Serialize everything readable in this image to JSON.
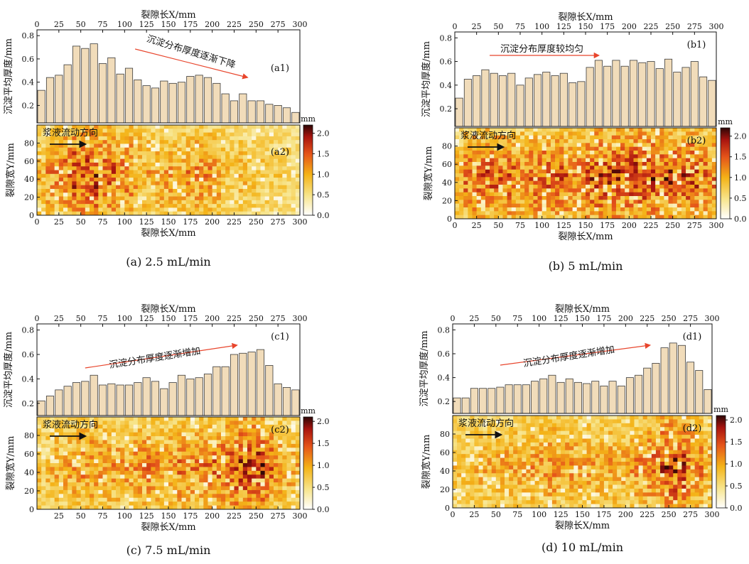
{
  "figure": {
    "x_axis_label": "裂隙长X/mm",
    "bar_ylabel": "沉淀平均厚度/mm",
    "heat_ylabel": "裂隙宽Y/mm",
    "flow_label": "浆液流动方向",
    "colorbar_unit": "mm"
  },
  "chart_data": [
    {
      "type": "bar",
      "panel": "(a1)",
      "caption": "(a) 2.5 mL/min",
      "trend_annotation": "沉淀分布厚度逐渐下降",
      "xlabel": "裂隙长X/mm",
      "ylabel": "沉淀平均厚度/mm",
      "xlim": [
        0,
        300
      ],
      "ylim": [
        0.05,
        0.85
      ],
      "xticks": [
        0,
        25,
        50,
        75,
        100,
        125,
        150,
        175,
        200,
        225,
        250,
        275,
        300
      ],
      "yticks": [
        0.2,
        0.4,
        0.6,
        0.8
      ],
      "bin_width": 10,
      "x": [
        5,
        15,
        25,
        35,
        45,
        55,
        65,
        75,
        85,
        95,
        105,
        115,
        125,
        135,
        145,
        155,
        165,
        175,
        185,
        195,
        205,
        215,
        225,
        235,
        245,
        255,
        265,
        275,
        285,
        295
      ],
      "values": [
        0.33,
        0.44,
        0.46,
        0.55,
        0.71,
        0.69,
        0.73,
        0.56,
        0.61,
        0.47,
        0.52,
        0.42,
        0.37,
        0.35,
        0.41,
        0.39,
        0.4,
        0.45,
        0.46,
        0.44,
        0.39,
        0.3,
        0.24,
        0.3,
        0.24,
        0.24,
        0.21,
        0.2,
        0.18,
        0.14
      ]
    },
    {
      "type": "heatmap",
      "panel": "(a2)",
      "xlabel": "裂隙长X/mm",
      "ylabel": "裂隙宽Y/mm",
      "xlim": [
        0,
        300
      ],
      "ylim": [
        0,
        100
      ],
      "xticks": [
        0,
        25,
        50,
        75,
        100,
        125,
        150,
        175,
        200,
        225,
        250,
        275,
        300
      ],
      "yticks": [
        0,
        20,
        40,
        60,
        80
      ],
      "colorbar": {
        "label": "mm",
        "min": 0,
        "max": 2.2,
        "ticks": [
          0.0,
          0.5,
          1.0,
          1.5,
          2.0
        ]
      }
    },
    {
      "type": "bar",
      "panel": "(b1)",
      "caption": "(b) 5 mL/min",
      "trend_annotation": "沉淀分布厚度较均匀",
      "xlabel": "裂隙长X/mm",
      "ylabel": "沉淀平均厚度/mm",
      "xlim": [
        0,
        300
      ],
      "ylim": [
        0.05,
        0.85
      ],
      "xticks": [
        0,
        25,
        50,
        75,
        100,
        125,
        150,
        175,
        200,
        225,
        250,
        275,
        300
      ],
      "yticks": [
        0.2,
        0.4,
        0.6,
        0.8
      ],
      "bin_width": 10,
      "x": [
        5,
        15,
        25,
        35,
        45,
        55,
        65,
        75,
        85,
        95,
        105,
        115,
        125,
        135,
        145,
        155,
        165,
        175,
        185,
        195,
        205,
        215,
        225,
        235,
        245,
        255,
        265,
        275,
        285,
        295
      ],
      "values": [
        0.29,
        0.45,
        0.48,
        0.53,
        0.5,
        0.48,
        0.5,
        0.4,
        0.46,
        0.49,
        0.51,
        0.48,
        0.5,
        0.42,
        0.43,
        0.55,
        0.61,
        0.56,
        0.61,
        0.56,
        0.61,
        0.59,
        0.6,
        0.54,
        0.62,
        0.51,
        0.55,
        0.6,
        0.47,
        0.44
      ]
    },
    {
      "type": "heatmap",
      "panel": "(b2)",
      "xlabel": "裂隙长X/mm",
      "ylabel": "裂隙宽Y/mm",
      "xlim": [
        0,
        300
      ],
      "ylim": [
        0,
        100
      ],
      "xticks": [
        0,
        25,
        50,
        75,
        100,
        125,
        150,
        175,
        200,
        225,
        250,
        275,
        300
      ],
      "yticks": [
        0,
        20,
        40,
        60,
        80
      ],
      "colorbar": {
        "label": "mm",
        "min": 0,
        "max": 2.2,
        "ticks": [
          0.0,
          0.5,
          1.0,
          1.5,
          2.0
        ]
      }
    },
    {
      "type": "bar",
      "panel": "(c1)",
      "caption": "(c) 7.5 mL/min",
      "trend_annotation": "沉淀分布厚度逐渐增加",
      "xlabel": "裂隙长X/mm",
      "ylabel": "沉淀平均厚度/mm",
      "xlim": [
        0,
        300
      ],
      "ylim": [
        0.1,
        0.85
      ],
      "xticks": [
        0,
        25,
        50,
        75,
        100,
        125,
        150,
        175,
        200,
        225,
        250,
        275,
        300
      ],
      "yticks": [
        0.2,
        0.4,
        0.6,
        0.8
      ],
      "bin_width": 10,
      "x": [
        5,
        15,
        25,
        35,
        45,
        55,
        65,
        75,
        85,
        95,
        105,
        115,
        125,
        135,
        145,
        155,
        165,
        175,
        185,
        195,
        205,
        215,
        225,
        235,
        245,
        255,
        265,
        275,
        285,
        295
      ],
      "values": [
        0.22,
        0.26,
        0.31,
        0.34,
        0.37,
        0.38,
        0.43,
        0.35,
        0.36,
        0.35,
        0.35,
        0.37,
        0.41,
        0.38,
        0.32,
        0.37,
        0.43,
        0.4,
        0.41,
        0.44,
        0.5,
        0.5,
        0.6,
        0.61,
        0.62,
        0.64,
        0.51,
        0.36,
        0.33,
        0.31
      ]
    },
    {
      "type": "heatmap",
      "panel": "(c2)",
      "xlabel": "裂隙长X/mm",
      "ylabel": "裂隙宽Y/mm",
      "xlim": [
        0,
        300
      ],
      "ylim": [
        0,
        100
      ],
      "xticks": [
        25,
        50,
        75,
        100,
        125,
        150,
        175,
        200,
        225,
        250,
        275,
        300
      ],
      "yticks": [
        0,
        20,
        40,
        60,
        80
      ],
      "colorbar": {
        "label": "mm",
        "min": 0,
        "max": 2.1,
        "ticks": [
          0.0,
          0.5,
          1.0,
          1.5,
          2.0
        ]
      }
    },
    {
      "type": "bar",
      "panel": "(d1)",
      "caption": "(d) 10 mL/min",
      "trend_annotation": "沉淀分布厚度逐渐增加",
      "xlabel": "裂隙长X/mm",
      "ylabel": "沉淀平均厚度/mm",
      "xlim": [
        0,
        300
      ],
      "ylim": [
        0.1,
        0.85
      ],
      "xticks": [
        0,
        25,
        50,
        75,
        100,
        125,
        150,
        175,
        200,
        225,
        250,
        275,
        300
      ],
      "yticks": [
        0.2,
        0.4,
        0.6,
        0.8
      ],
      "bin_width": 10,
      "x": [
        5,
        15,
        25,
        35,
        45,
        55,
        65,
        75,
        85,
        95,
        105,
        115,
        125,
        135,
        145,
        155,
        165,
        175,
        185,
        195,
        205,
        215,
        225,
        235,
        245,
        255,
        265,
        275,
        285,
        295
      ],
      "values": [
        0.23,
        0.23,
        0.31,
        0.31,
        0.31,
        0.32,
        0.34,
        0.34,
        0.34,
        0.37,
        0.39,
        0.42,
        0.36,
        0.39,
        0.36,
        0.35,
        0.37,
        0.33,
        0.37,
        0.33,
        0.4,
        0.42,
        0.48,
        0.52,
        0.65,
        0.69,
        0.67,
        0.53,
        0.46,
        0.3
      ]
    },
    {
      "type": "heatmap",
      "panel": "(d2)",
      "xlabel": "裂隙长X/mm",
      "ylabel": "裂隙宽Y/mm",
      "xlim": [
        0,
        300
      ],
      "ylim": [
        0,
        100
      ],
      "xticks": [
        0,
        25,
        50,
        75,
        100,
        125,
        150,
        175,
        200,
        225,
        250,
        275,
        300
      ],
      "yticks": [
        0,
        20,
        40,
        60,
        80
      ],
      "colorbar": {
        "label": "mm",
        "min": 0,
        "max": 2.1,
        "ticks": [
          0.0,
          0.5,
          1.0,
          1.5,
          2.0
        ]
      }
    }
  ],
  "colors": {
    "bar_fill": "#f1dcba",
    "bar_stroke": "#3a3a3a",
    "trend_arrow": "#e8452c",
    "flow_arrow": "#111111",
    "cmap_low": "#ffffff",
    "cmap_mid": "#f5c518",
    "cmap_high": "#c8180f",
    "cmap_top": "#3a0a08"
  }
}
